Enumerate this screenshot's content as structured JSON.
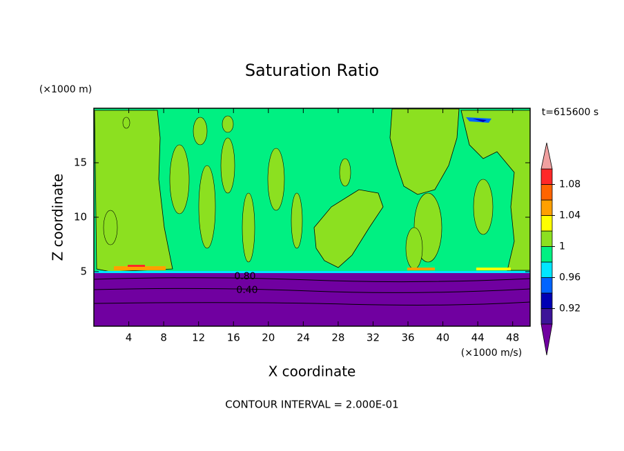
{
  "chart_data": {
    "type": "contour",
    "title": "Saturation Ratio",
    "x_label": "X coordinate",
    "y_label": "Z coordinate",
    "x_unit": "(×1000 m/s)",
    "y_unit": "(×1000 m)",
    "time_label": "t=615600 s",
    "footer": "CONTOUR INTERVAL = 2.000E-01",
    "contour_labels": [
      "0.80",
      "0.40"
    ],
    "xlim": [
      0,
      50
    ],
    "xticks": [
      4,
      8,
      12,
      16,
      20,
      24,
      28,
      32,
      36,
      40,
      44,
      48
    ],
    "ylim": [
      0,
      20
    ],
    "yticks": [
      5,
      10,
      15
    ],
    "colorbar": {
      "lim": [
        0.9,
        1.1
      ],
      "ticks": [
        0.92,
        0.96,
        1,
        1.04,
        1.08
      ],
      "colors": [
        "#3c1498",
        "#0000b4",
        "#0064ff",
        "#00e6ff",
        "#00f082",
        "#8ce020",
        "#ffff00",
        "#ffa000",
        "#ff6400",
        "#ff2828"
      ],
      "under_color": "#7000a0",
      "over_color": "#f0a0a0"
    }
  }
}
